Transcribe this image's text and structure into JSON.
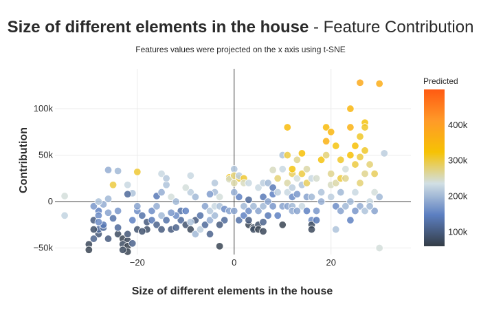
{
  "chart_data": {
    "type": "scatter",
    "title_bold": "Size of different elements in the house",
    "title_rest": " - Feature Contribution",
    "subtitle": "Features values were projected on the x axis using t-SNE",
    "xlabel": "Size of different elements in the house",
    "ylabel": "Contribution",
    "xlim": [
      -37,
      36.5
    ],
    "ylim": [
      -57000,
      143000
    ],
    "x_ticks": [
      -20,
      0,
      20
    ],
    "y_ticks": [
      -50000,
      0,
      50000,
      100000
    ],
    "x_tick_labels": [
      "−20",
      "0",
      "20"
    ],
    "y_tick_labels": [
      "−50k",
      "0",
      "50k",
      "100k"
    ],
    "grid": true,
    "colorbar": {
      "title": "Predicted",
      "range": [
        60000,
        500000
      ],
      "ticks": [
        100000,
        200000,
        300000,
        400000
      ],
      "tick_labels": [
        "100k",
        "200k",
        "300k",
        "400k"
      ],
      "colors": [
        "#343d46",
        "#5c7fc1",
        "#d1dfe4",
        "#f6c204",
        "#ff9a28",
        "#ff5a12"
      ]
    },
    "points": [
      [
        -35,
        6000,
        240000
      ],
      [
        -35,
        -15000,
        225000
      ],
      [
        -26,
        34000,
        190000
      ],
      [
        -25,
        18000,
        300000
      ],
      [
        -26,
        3000,
        200000
      ],
      [
        -24,
        33000,
        200000
      ],
      [
        -20,
        32000,
        305000
      ],
      [
        -22,
        18000,
        230000
      ],
      [
        -21,
        9000,
        210000
      ],
      [
        -30,
        -46000,
        75000
      ],
      [
        -30,
        -52000,
        70000
      ],
      [
        -28,
        -35000,
        95000
      ],
      [
        -29,
        -40000,
        110000
      ],
      [
        -28,
        -30000,
        120000
      ],
      [
        -29,
        -20000,
        100000
      ],
      [
        -28,
        -10000,
        150000
      ],
      [
        -29,
        -5000,
        170000
      ],
      [
        -27,
        -3000,
        190000
      ],
      [
        -28,
        0,
        210000
      ],
      [
        -28,
        -15000,
        160000
      ],
      [
        -27,
        -28000,
        120000
      ],
      [
        -26,
        -40000,
        100000
      ],
      [
        -27,
        -25000,
        140000
      ],
      [
        -25,
        -18000,
        130000
      ],
      [
        -29,
        -30000,
        85000
      ],
      [
        -28,
        -22000,
        160000
      ],
      [
        -26,
        -12000,
        180000
      ],
      [
        -24,
        -35000,
        80000
      ],
      [
        -23,
        -40000,
        70000
      ],
      [
        -22,
        -42000,
        75000
      ],
      [
        -24,
        -28000,
        120000
      ],
      [
        -23,
        -46000,
        80000
      ],
      [
        -22,
        -48000,
        65000
      ],
      [
        -22,
        -54000,
        70000
      ],
      [
        -23,
        -52000,
        78000
      ],
      [
        -21,
        -45000,
        110000
      ],
      [
        -20,
        -30000,
        90000
      ],
      [
        -22,
        -35000,
        95000
      ],
      [
        -21,
        -20000,
        150000
      ],
      [
        -20,
        -10000,
        160000
      ],
      [
        -20,
        -5000,
        180000
      ],
      [
        -22,
        8000,
        120000
      ],
      [
        -24,
        -10000,
        170000
      ],
      [
        -18,
        -22000,
        100000
      ],
      [
        -19,
        -15000,
        130000
      ],
      [
        -17,
        -20000,
        140000
      ],
      [
        -16,
        -25000,
        110000
      ],
      [
        -15,
        -30000,
        100000
      ],
      [
        -18,
        -30000,
        85000
      ],
      [
        -19,
        -32000,
        90000
      ],
      [
        -17,
        -10000,
        160000
      ],
      [
        -16,
        -5000,
        190000
      ],
      [
        -15,
        -15000,
        200000
      ],
      [
        -14,
        -20000,
        130000
      ],
      [
        -16,
        6000,
        140000
      ],
      [
        -15,
        10000,
        190000
      ],
      [
        -14,
        18000,
        210000
      ],
      [
        -15,
        30000,
        230000
      ],
      [
        -14,
        25000,
        215000
      ],
      [
        -13,
        5000,
        240000
      ],
      [
        -12,
        0,
        200000
      ],
      [
        -11,
        -10000,
        130000
      ],
      [
        -13,
        -30000,
        100000
      ],
      [
        -12,
        -28000,
        110000
      ],
      [
        -11,
        -20000,
        120000
      ],
      [
        -12,
        -15000,
        160000
      ],
      [
        -13,
        -12000,
        170000
      ],
      [
        -10,
        -25000,
        90000
      ],
      [
        -9,
        -30000,
        75000
      ],
      [
        -8,
        -20000,
        100000
      ],
      [
        -10,
        -10000,
        150000
      ],
      [
        -9,
        10000,
        220000
      ],
      [
        -8,
        5000,
        200000
      ],
      [
        -10,
        15000,
        240000
      ],
      [
        -9,
        28000,
        230000
      ],
      [
        -8,
        -35000,
        200000
      ],
      [
        -7,
        -30000,
        220000
      ],
      [
        -9,
        -22000,
        210000
      ],
      [
        -7,
        -15000,
        130000
      ],
      [
        -6,
        -5000,
        180000
      ],
      [
        -6,
        -25000,
        120000
      ],
      [
        -5,
        -35000,
        110000
      ],
      [
        -5,
        -20000,
        190000
      ],
      [
        -4,
        -15000,
        200000
      ],
      [
        -5,
        -10000,
        215000
      ],
      [
        -4,
        10000,
        205000
      ],
      [
        -5,
        8000,
        175000
      ],
      [
        -4,
        -5000,
        230000
      ],
      [
        -3,
        -5000,
        210000
      ],
      [
        -3,
        5000,
        240000
      ],
      [
        -4,
        20000,
        215000
      ],
      [
        -3,
        -48000,
        70000
      ],
      [
        -2,
        -20000,
        120000
      ],
      [
        -2,
        -8000,
        160000
      ],
      [
        -3,
        -25000,
        100000
      ],
      [
        -1,
        -10000,
        180000
      ],
      [
        -1,
        26000,
        310000
      ],
      [
        -1,
        24000,
        250000
      ],
      [
        0,
        35000,
        210000
      ],
      [
        0,
        28000,
        280000
      ],
      [
        1,
        25000,
        300000
      ],
      [
        0,
        20000,
        260000
      ],
      [
        1,
        5000,
        150000
      ],
      [
        0,
        -10000,
        180000
      ],
      [
        1,
        -20000,
        130000
      ],
      [
        2,
        -15000,
        150000
      ],
      [
        0,
        10000,
        190000
      ],
      [
        1,
        28000,
        220000
      ],
      [
        2,
        25000,
        305000
      ],
      [
        2,
        20000,
        250000
      ],
      [
        2,
        -5000,
        200000
      ],
      [
        3,
        -10000,
        160000
      ],
      [
        3,
        2000,
        120000
      ],
      [
        3,
        20000,
        230000
      ],
      [
        3,
        -25000,
        70000
      ],
      [
        4,
        -28000,
        75000
      ],
      [
        4,
        -30000,
        80000
      ],
      [
        5,
        -25000,
        85000
      ],
      [
        3,
        -20000,
        100000
      ],
      [
        5,
        -10000,
        180000
      ],
      [
        4,
        -5000,
        200000
      ],
      [
        5,
        -30000,
        70000
      ],
      [
        6,
        -32000,
        75000
      ],
      [
        6,
        -22000,
        110000
      ],
      [
        7,
        -15000,
        140000
      ],
      [
        6,
        -5000,
        200000
      ],
      [
        6,
        5000,
        140000
      ],
      [
        7,
        0,
        180000
      ],
      [
        5,
        15000,
        230000
      ],
      [
        6,
        20000,
        220000
      ],
      [
        7,
        20000,
        200000
      ],
      [
        8,
        8000,
        150000
      ],
      [
        8,
        -5000,
        170000
      ],
      [
        8,
        15000,
        140000
      ],
      [
        9,
        10000,
        220000
      ],
      [
        9,
        -15000,
        150000
      ],
      [
        9,
        25000,
        280000
      ],
      [
        10,
        35000,
        230000
      ],
      [
        8,
        34000,
        250000
      ],
      [
        10,
        50000,
        210000
      ],
      [
        11,
        50000,
        300000
      ],
      [
        10,
        -5000,
        180000
      ],
      [
        10,
        -25000,
        70000
      ],
      [
        11,
        10000,
        230000
      ],
      [
        11,
        20000,
        260000
      ],
      [
        12,
        30000,
        290000
      ],
      [
        12,
        35000,
        320000
      ],
      [
        12,
        15000,
        220000
      ],
      [
        11,
        -5000,
        180000
      ],
      [
        12,
        -5000,
        200000
      ],
      [
        12,
        5000,
        160000
      ],
      [
        13,
        45000,
        270000
      ],
      [
        13,
        25000,
        240000
      ],
      [
        14,
        30000,
        300000
      ],
      [
        14,
        52000,
        330000
      ],
      [
        15,
        35000,
        260000
      ],
      [
        14,
        18000,
        210000
      ],
      [
        13,
        8000,
        170000
      ],
      [
        12,
        -10000,
        190000
      ],
      [
        14,
        -5000,
        230000
      ],
      [
        13,
        -10000,
        180000
      ],
      [
        11,
        80000,
        340000
      ],
      [
        15,
        20000,
        290000
      ],
      [
        16,
        25000,
        230000
      ],
      [
        15,
        5000,
        180000
      ],
      [
        16,
        5000,
        200000
      ],
      [
        17,
        25000,
        245000
      ],
      [
        15,
        -10000,
        150000
      ],
      [
        16,
        -20000,
        160000
      ],
      [
        16,
        -25000,
        80000
      ],
      [
        16,
        -30000,
        75000
      ],
      [
        17,
        -20000,
        140000
      ],
      [
        17,
        -10000,
        170000
      ],
      [
        18,
        0,
        190000
      ],
      [
        18,
        10000,
        210000
      ],
      [
        18,
        45000,
        320000
      ],
      [
        19,
        65000,
        360000
      ],
      [
        19,
        80000,
        340000
      ],
      [
        20,
        75000,
        350000
      ],
      [
        19,
        50000,
        280000
      ],
      [
        20,
        30000,
        270000
      ],
      [
        21,
        60000,
        320000
      ],
      [
        22,
        45000,
        310000
      ],
      [
        20,
        18000,
        250000
      ],
      [
        21,
        20000,
        260000
      ],
      [
        22,
        25000,
        300000
      ],
      [
        20,
        5000,
        220000
      ],
      [
        22,
        10000,
        200000
      ],
      [
        21,
        -5000,
        160000
      ],
      [
        22,
        -10000,
        180000
      ],
      [
        21,
        -30000,
        210000
      ],
      [
        23,
        25000,
        270000
      ],
      [
        23,
        35000,
        240000
      ],
      [
        24,
        50000,
        330000
      ],
      [
        24,
        80000,
        360000
      ],
      [
        24,
        100000,
        350000
      ],
      [
        25,
        60000,
        330000
      ],
      [
        26,
        70000,
        310000
      ],
      [
        26,
        128000,
        380000
      ],
      [
        27,
        85000,
        320000
      ],
      [
        27,
        80000,
        310000
      ],
      [
        25,
        40000,
        300000
      ],
      [
        26,
        20000,
        280000
      ],
      [
        27,
        30000,
        270000
      ],
      [
        25,
        10000,
        230000
      ],
      [
        24,
        0,
        200000
      ],
      [
        26,
        -5000,
        190000
      ],
      [
        25,
        -10000,
        170000
      ],
      [
        24,
        -20000,
        150000
      ],
      [
        23,
        -5000,
        200000
      ],
      [
        27,
        -10000,
        210000
      ],
      [
        28,
        0,
        230000
      ],
      [
        29,
        10000,
        240000
      ],
      [
        29,
        30000,
        290000
      ],
      [
        30,
        5000,
        200000
      ],
      [
        29,
        -10000,
        180000
      ],
      [
        31,
        52000,
        220000
      ],
      [
        30,
        127000,
        370000
      ],
      [
        30,
        -50000,
        240000
      ],
      [
        28,
        40000,
        280000
      ],
      [
        26,
        48000,
        300000
      ],
      [
        27,
        55000,
        310000
      ],
      [
        28,
        -5000,
        200000
      ]
    ]
  }
}
